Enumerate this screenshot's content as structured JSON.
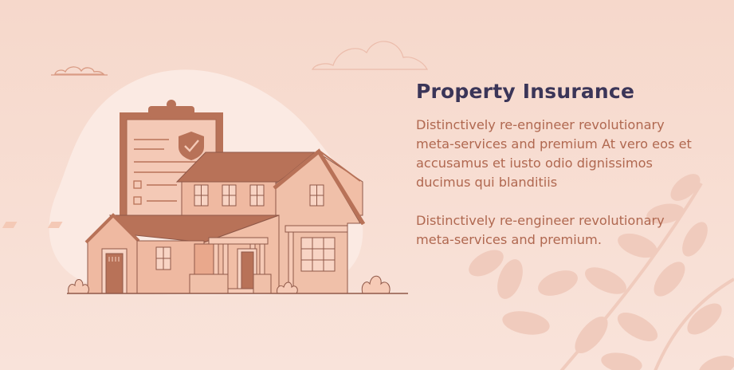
{
  "card": {
    "title": "Property Insurance",
    "paragraphs": [
      "Distinctively re-engineer revolutionary meta-services and premium  At vero eos et accusamus et iusto odio dignissimos ducimus qui blanditiis",
      "Distinctively re-engineer revolutionary meta-services and premium."
    ]
  },
  "illustration": {
    "icons": [
      "house-icon",
      "clipboard-icon",
      "shield-check-icon",
      "cloud-icon",
      "leaf-branch-icon",
      "bush-icon"
    ]
  },
  "colors": {
    "background": "#f6d8cb",
    "title": "#3b3558",
    "body_text": "#b06850",
    "house_dark": "#b87258",
    "house_light": "#efb9a1",
    "outline": "#8f5848",
    "blob": "#fbeae3"
  }
}
